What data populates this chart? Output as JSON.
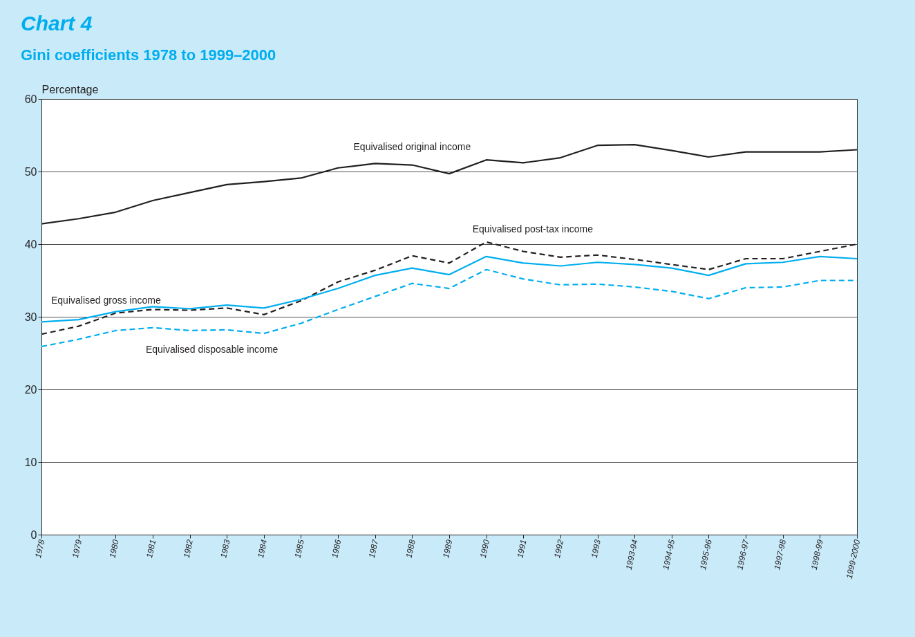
{
  "chart_data": {
    "type": "line",
    "title": "Chart 4",
    "subtitle": "Gini coefficients 1978 to 1999–2000",
    "ylabel": "Percentage",
    "categories": [
      "1978",
      "1979",
      "1980",
      "1981",
      "1982",
      "1983",
      "1984",
      "1985",
      "1986",
      "1987",
      "1988",
      "1989",
      "1990",
      "1991",
      "1992",
      "1993",
      "1993-94",
      "1994-95",
      "1995-96",
      "1996-97",
      "1997-98",
      "1998-99",
      "1999-2000"
    ],
    "ylim": [
      0,
      60
    ],
    "yticks": [
      0,
      10,
      20,
      30,
      40,
      50,
      60
    ],
    "grid": "y",
    "series": [
      {
        "name": "Equivalised original income",
        "color": "#231f20",
        "line_style": "solid",
        "values": [
          42.8,
          43.5,
          44.4,
          46.0,
          47.1,
          48.2,
          48.6,
          49.1,
          50.5,
          51.1,
          50.9,
          49.7,
          51.6,
          51.2,
          51.9,
          53.6,
          53.7,
          52.9,
          52.0,
          52.7,
          52.7,
          52.7,
          53.0
        ]
      },
      {
        "name": "Equivalised post-tax income",
        "color": "#231f20",
        "line_style": "dashed",
        "values": [
          27.6,
          28.7,
          30.5,
          31.0,
          30.9,
          31.2,
          30.3,
          32.2,
          34.8,
          36.4,
          38.4,
          37.4,
          40.3,
          39.0,
          38.2,
          38.5,
          37.9,
          37.2,
          36.5,
          38.0,
          38.0,
          39.0,
          40.0
        ]
      },
      {
        "name": "Equivalised gross income",
        "color": "#00aeef",
        "line_style": "solid",
        "values": [
          29.3,
          29.6,
          30.7,
          31.4,
          31.1,
          31.6,
          31.2,
          32.4,
          33.9,
          35.7,
          36.7,
          35.8,
          38.3,
          37.4,
          37.0,
          37.5,
          37.2,
          36.7,
          35.7,
          37.3,
          37.5,
          38.3,
          38.0
        ]
      },
      {
        "name": "Equivalised disposable income",
        "color": "#00aeef",
        "line_style": "dashed",
        "values": [
          25.9,
          26.9,
          28.1,
          28.5,
          28.1,
          28.2,
          27.7,
          29.1,
          31.0,
          32.8,
          34.6,
          33.9,
          36.5,
          35.2,
          34.4,
          34.5,
          34.1,
          33.5,
          32.5,
          34.0,
          34.1,
          35.0,
          35.0
        ]
      }
    ]
  }
}
